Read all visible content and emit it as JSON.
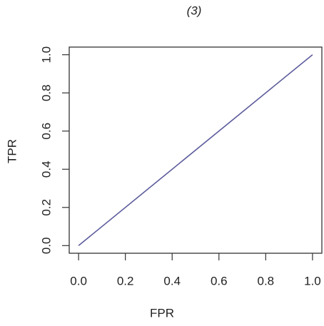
{
  "chart_data": {
    "type": "line",
    "title": "(3)",
    "x_label": "FPR",
    "y_label": "TPR",
    "x": [
      0,
      1
    ],
    "values": [
      0,
      1
    ],
    "color": "#5c5c9c",
    "xlim": [
      -0.04,
      1.04
    ],
    "ylim": [
      -0.04,
      1.04
    ],
    "xticks": [
      {
        "value": 0,
        "label": "0.0"
      },
      0.2,
      0.4,
      0.6,
      0.8,
      {
        "value": 1,
        "label": "1.0"
      }
    ],
    "yticks": [
      {
        "value": 0,
        "label": "0.0"
      },
      0.2,
      0.4,
      0.6,
      0.8,
      {
        "value": 1,
        "label": "1.0"
      }
    ]
  }
}
